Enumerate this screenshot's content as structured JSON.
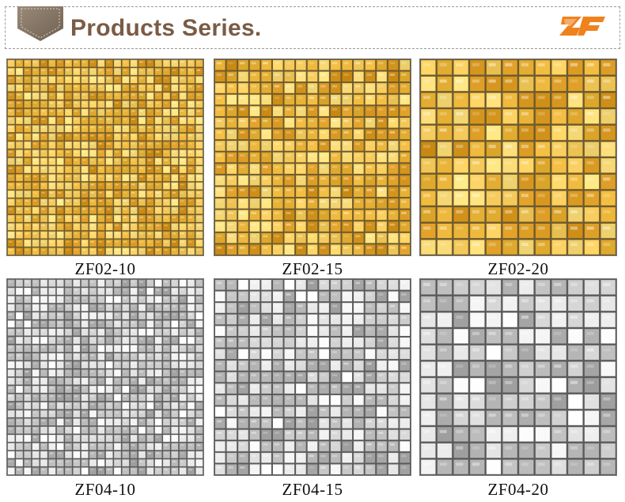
{
  "header": {
    "title": "Products Series.",
    "badge_icon": "tag-ribbon-icon",
    "logo_icon": "zf-brand-logo-icon",
    "colors": {
      "title": "#7a5b45",
      "badge": "#8b7a68",
      "logo_orange": "#f0821e"
    }
  },
  "products": [
    {
      "code": "ZF02-10",
      "finish": "gold"
    },
    {
      "code": "ZF02-15",
      "finish": "gold"
    },
    {
      "code": "ZF02-20",
      "finish": "gold"
    },
    {
      "code": "ZF04-10",
      "finish": "silver"
    },
    {
      "code": "ZF04-15",
      "finish": "silver"
    },
    {
      "code": "ZF04-20",
      "finish": "silver"
    }
  ]
}
